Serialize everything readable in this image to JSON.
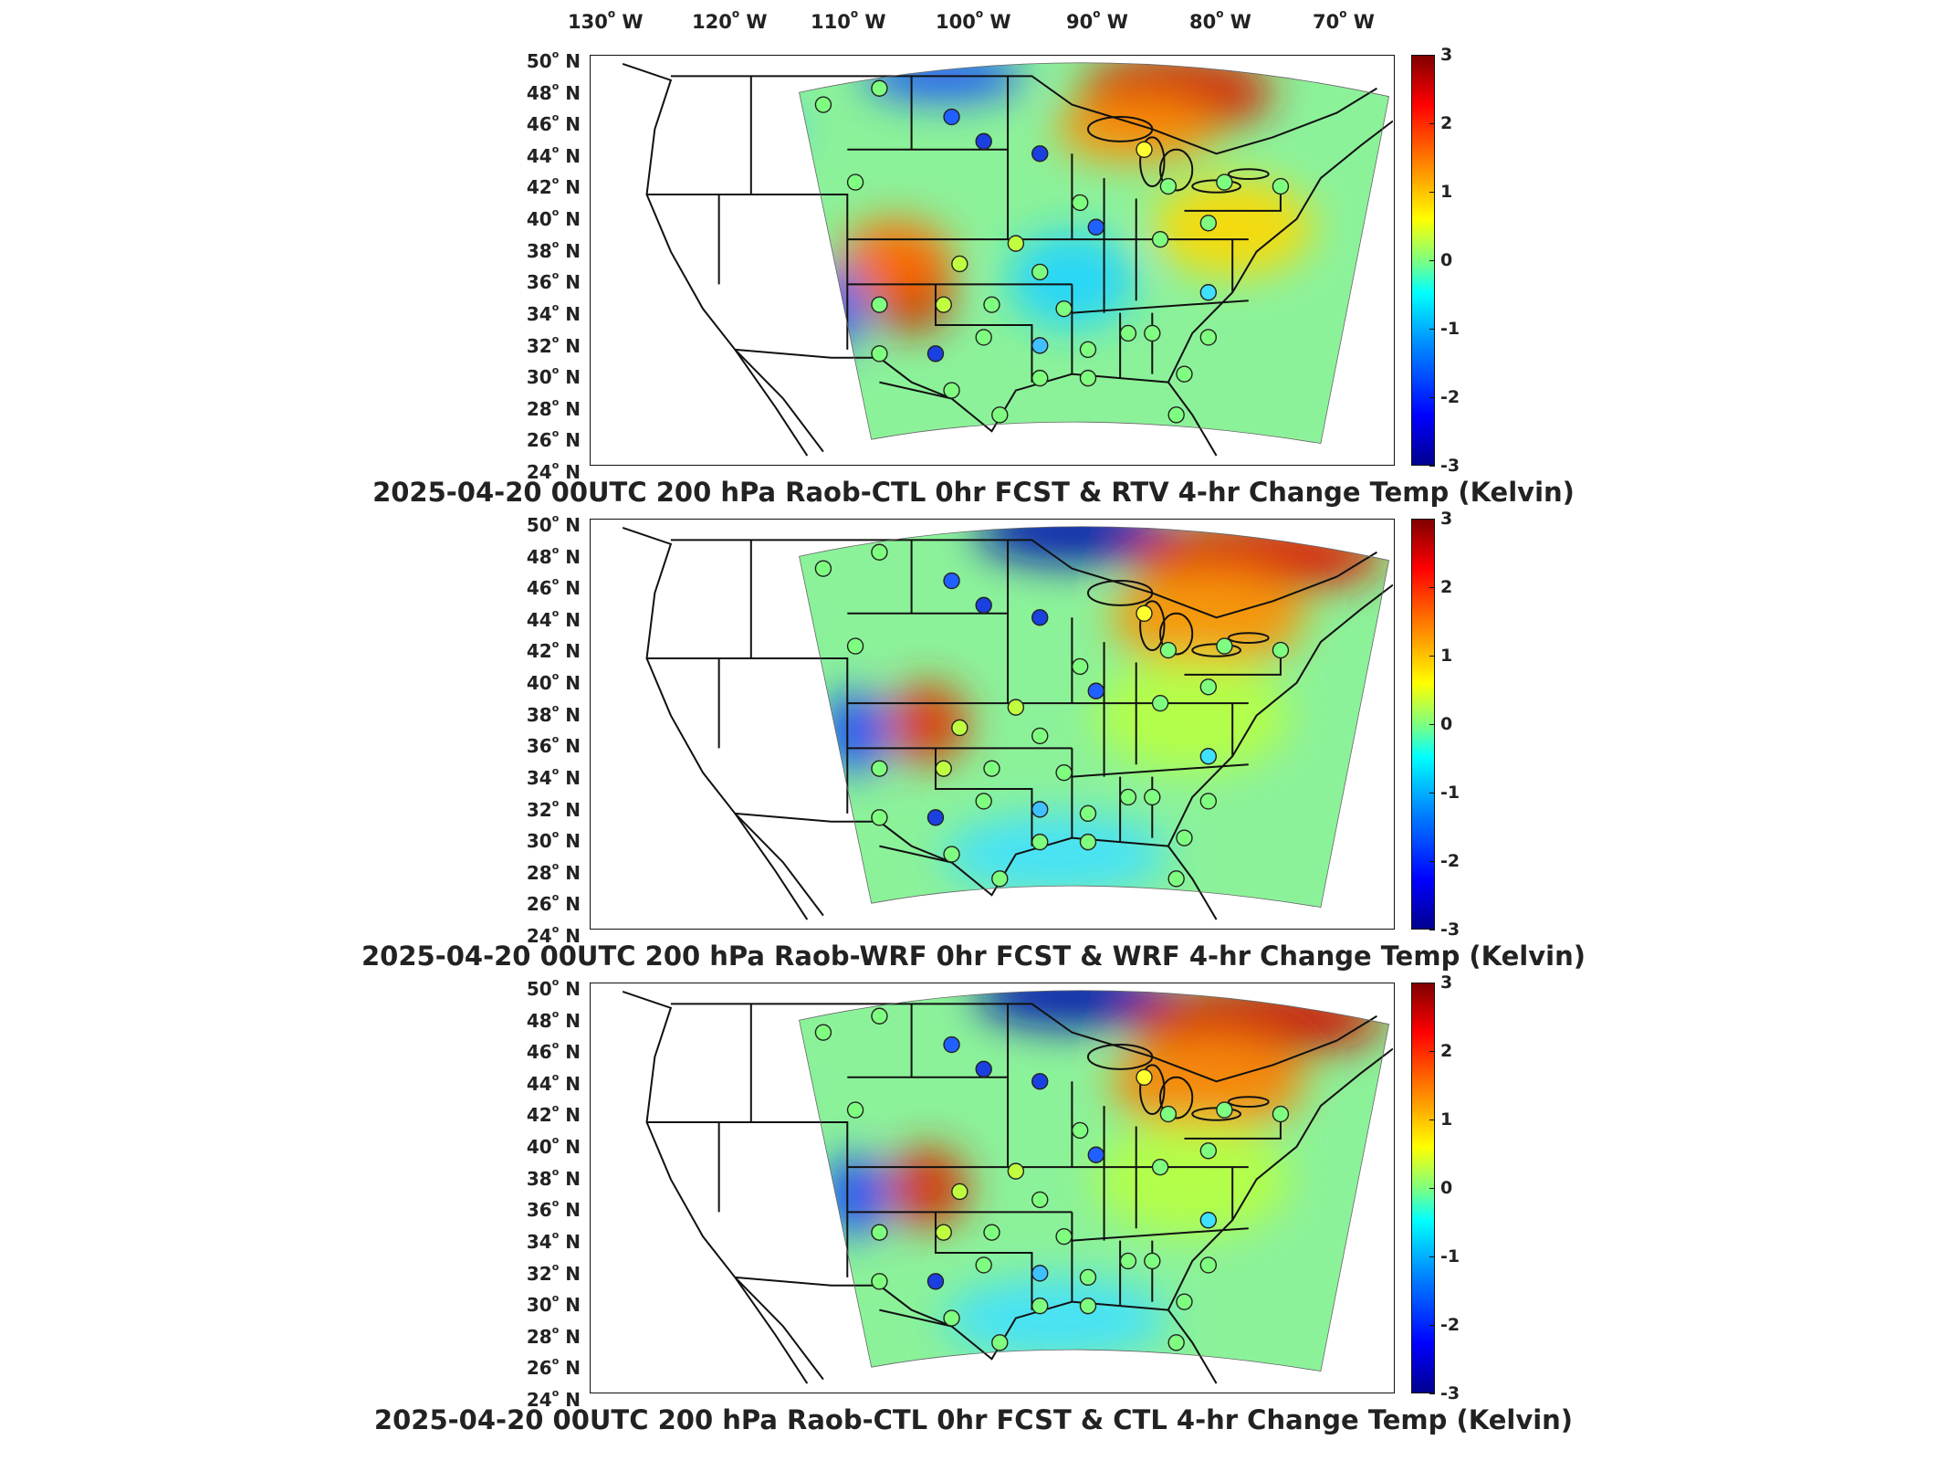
{
  "longitude_labels": [
    {
      "deg": "130",
      "dir": "W"
    },
    {
      "deg": "120",
      "dir": "W"
    },
    {
      "deg": "110",
      "dir": "W"
    },
    {
      "deg": "100",
      "dir": "W"
    },
    {
      "deg": "90",
      "dir": "W"
    },
    {
      "deg": "80",
      "dir": "W"
    },
    {
      "deg": "70",
      "dir": "W"
    }
  ],
  "latitude_labels": [
    {
      "deg": "50",
      "dir": "N"
    },
    {
      "deg": "48",
      "dir": "N"
    },
    {
      "deg": "46",
      "dir": "N"
    },
    {
      "deg": "44",
      "dir": "N"
    },
    {
      "deg": "42",
      "dir": "N"
    },
    {
      "deg": "40",
      "dir": "N"
    },
    {
      "deg": "38",
      "dir": "N"
    },
    {
      "deg": "36",
      "dir": "N"
    },
    {
      "deg": "34",
      "dir": "N"
    },
    {
      "deg": "32",
      "dir": "N"
    },
    {
      "deg": "30",
      "dir": "N"
    },
    {
      "deg": "28",
      "dir": "N"
    },
    {
      "deg": "26",
      "dir": "N"
    },
    {
      "deg": "24",
      "dir": "N"
    }
  ],
  "colorbar": {
    "ticks": [
      "3",
      "2",
      "1",
      "0",
      "-1",
      "-2",
      "-3"
    ],
    "range": [
      -3,
      3
    ],
    "colormap": [
      "#00008f",
      "#0000ff",
      "#0080ff",
      "#00ffff",
      "#7fff7f",
      "#ffff00",
      "#ff8000",
      "#ff0000",
      "#800000"
    ]
  },
  "panels": [
    {
      "caption": "2025-04-20 00UTC 200 hPa Raob-CTL 0hr FCST & RTV 4-hr Change Temp (Kelvin)"
    },
    {
      "caption": "2025-04-20 00UTC 200 hPa Raob-WRF 0hr FCST & WRF 4-hr Change Temp (Kelvin)"
    },
    {
      "caption": "2025-04-20 00UTC 200 hPa Raob-CTL 0hr FCST & CTL 4-hr Change Temp (Kelvin)"
    }
  ]
}
